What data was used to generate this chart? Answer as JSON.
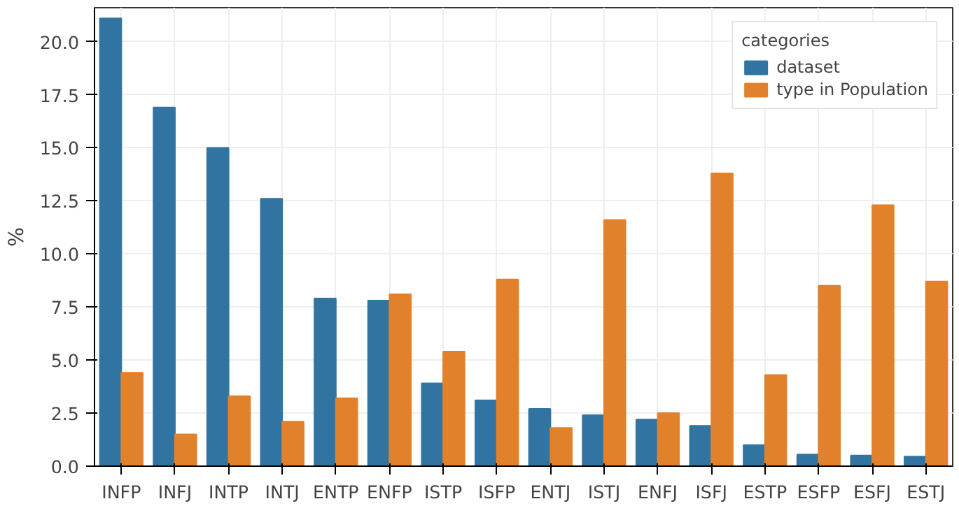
{
  "chart_data": {
    "type": "bar",
    "ylabel": "%",
    "legend_title": "categories",
    "categories": [
      "INFP",
      "INFJ",
      "INTP",
      "INTJ",
      "ENTP",
      "ENFP",
      "ISTP",
      "ISFP",
      "ENTJ",
      "ISTJ",
      "ENFJ",
      "ISFJ",
      "ESTP",
      "ESFP",
      "ESFJ",
      "ESTJ"
    ],
    "series": [
      {
        "name": "dataset",
        "color": "#3274a1",
        "values": [
          21.1,
          16.9,
          15.0,
          12.6,
          7.9,
          7.8,
          3.9,
          3.1,
          2.7,
          2.4,
          2.2,
          1.9,
          1.0,
          0.55,
          0.5,
          0.45
        ]
      },
      {
        "name": "type in Population",
        "color": "#e1812c",
        "values": [
          4.4,
          1.5,
          3.3,
          2.1,
          3.2,
          8.1,
          5.4,
          8.8,
          1.8,
          11.6,
          2.5,
          13.8,
          4.3,
          8.5,
          12.3,
          8.7
        ]
      }
    ],
    "ylim": [
      0,
      21.6
    ],
    "yticks": [
      {
        "value": 0,
        "label": "0.0"
      },
      {
        "value": 2.5,
        "label": "2.5"
      },
      {
        "value": 5,
        "label": "5.0"
      },
      {
        "value": 7.5,
        "label": "7.5"
      },
      {
        "value": 10,
        "label": "10.0"
      },
      {
        "value": 12.5,
        "label": "12.5"
      },
      {
        "value": 15,
        "label": "15.0"
      },
      {
        "value": 17.5,
        "label": "17.5"
      },
      {
        "value": 20,
        "label": "20.0"
      }
    ],
    "grid": true,
    "legend": "top right"
  }
}
